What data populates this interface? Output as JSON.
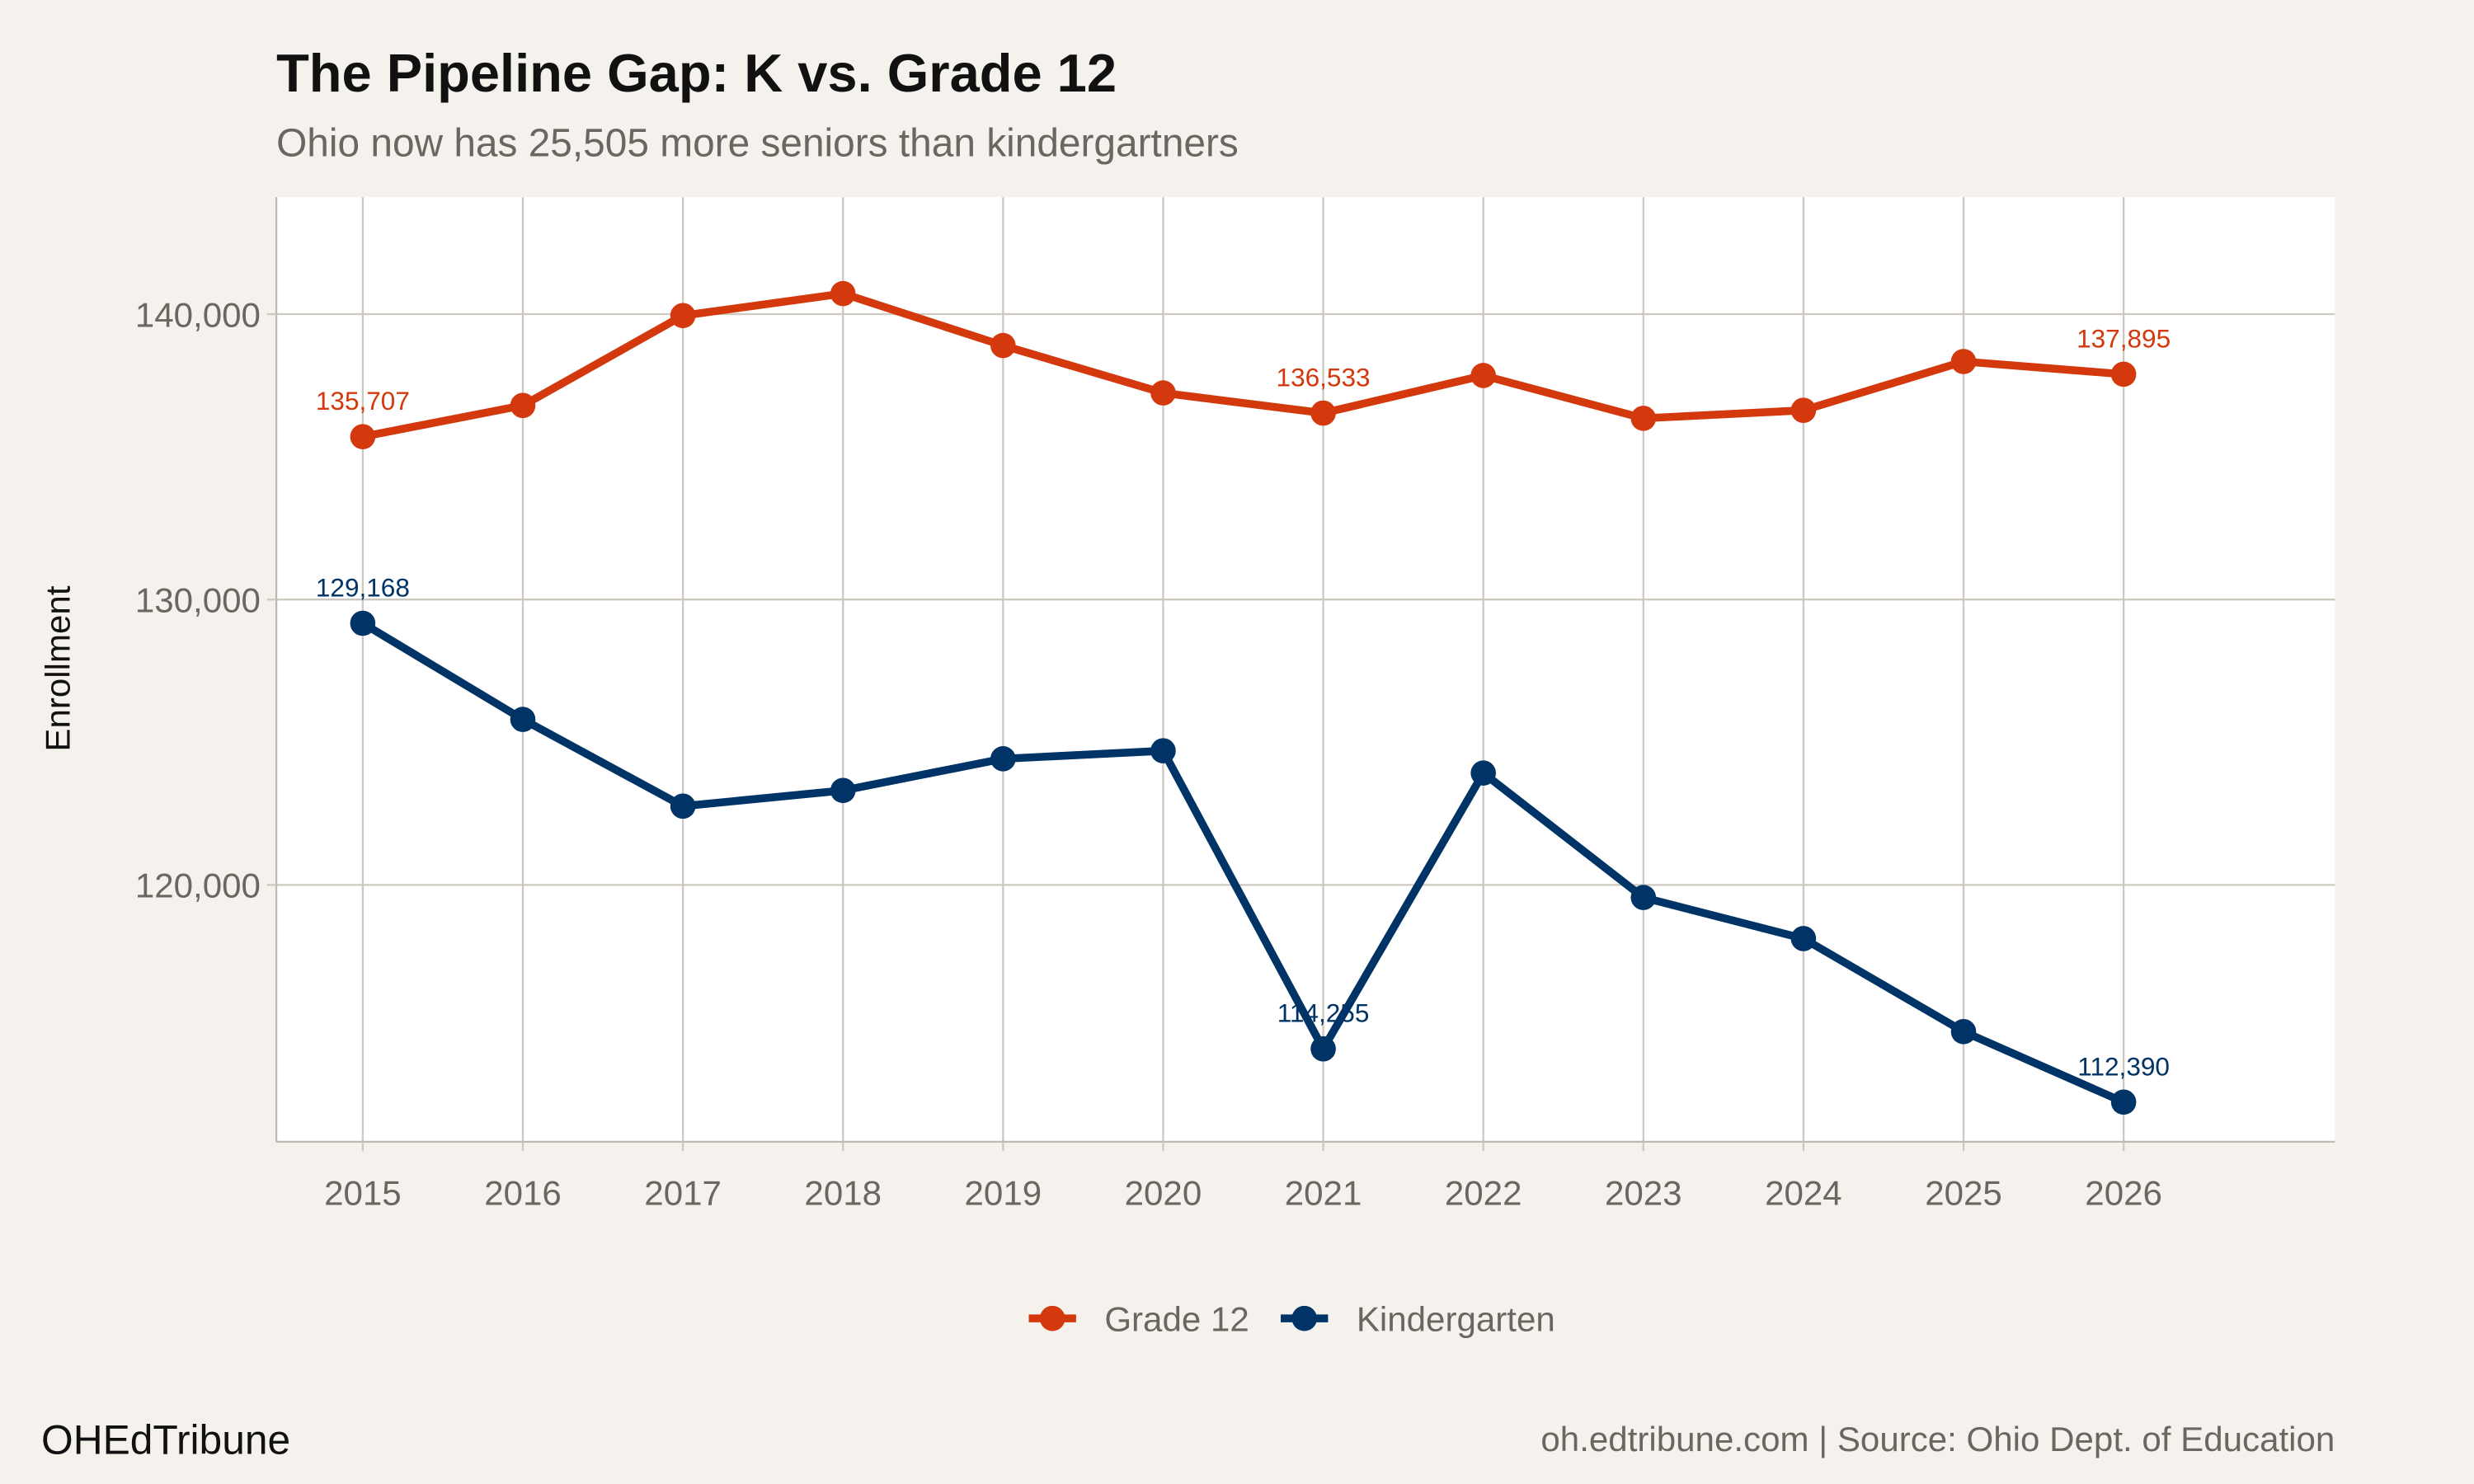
{
  "chart_data": {
    "type": "line",
    "title": "The Pipeline Gap: K vs. Grade 12",
    "subtitle": "Ohio now has 25,505 more seniors than kindergartners",
    "xlabel": "",
    "ylabel": "Enrollment",
    "x": [
      2015,
      2016,
      2017,
      2018,
      2019,
      2020,
      2021,
      2022,
      2023,
      2024,
      2025,
      2026
    ],
    "x_ticks": [
      "2015",
      "2016",
      "2017",
      "2018",
      "2019",
      "2020",
      "2021",
      "2022",
      "2023",
      "2024",
      "2025",
      "2026"
    ],
    "y_ticks": [
      {
        "value": 120000,
        "label": "120,000"
      },
      {
        "value": 130000,
        "label": "130,000"
      },
      {
        "value": 140000,
        "label": "140,000"
      }
    ],
    "xlim": [
      2014.46,
      2027.32
    ],
    "ylim": [
      111000,
      144100
    ],
    "grid": true,
    "legend_position": "bottom",
    "series": [
      {
        "name": "Grade 12",
        "color": "#d4380d",
        "values": [
          135707,
          136800,
          139950,
          140720,
          138900,
          137240,
          136533,
          137850,
          136350,
          136630,
          138340,
          137895
        ],
        "labels": [
          {
            "x": 2015,
            "text": "135,707"
          },
          {
            "x": 2021,
            "text": "136,533"
          },
          {
            "x": 2026,
            "text": "137,895"
          }
        ]
      },
      {
        "name": "Kindergarten",
        "color": "#003366",
        "values": [
          129168,
          125800,
          122760,
          123310,
          124420,
          124700,
          114255,
          123920,
          119560,
          118120,
          114860,
          112390
        ],
        "labels": [
          {
            "x": 2015,
            "text": "129,168"
          },
          {
            "x": 2021,
            "text": "114,255"
          },
          {
            "x": 2026,
            "text": "112,390"
          }
        ]
      }
    ]
  },
  "footer": {
    "brand": "OHEdTribune",
    "caption": "oh.edtribune.com | Source: Ohio Dept. of Education"
  },
  "colors": {
    "background": "#f5f2ed",
    "panel": "#ffffff",
    "grid": "#cdc8c0"
  }
}
